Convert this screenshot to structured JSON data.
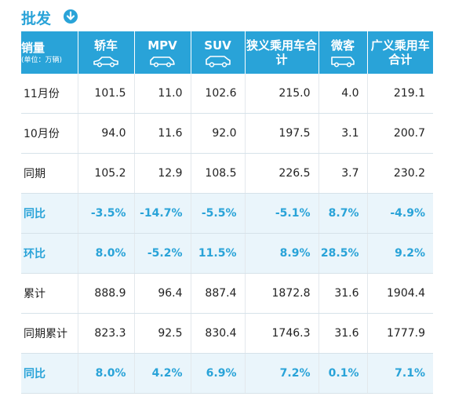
{
  "title": "批发",
  "icons": {
    "title": "download-circle-icon",
    "column": "car-icon"
  },
  "colors": {
    "accent": "#29a3d8",
    "highlight_row_bg": "#eaf5fb"
  },
  "table": {
    "header_label": "销量",
    "header_unit": "(单位：万辆)",
    "columns": [
      "轿车",
      "MPV",
      "SUV",
      "狭义乘用车合计",
      "微客",
      "广义乘用车合计"
    ],
    "rows": [
      {
        "label": "11月份",
        "values": [
          "101.5",
          "11.0",
          "102.6",
          "215.0",
          "4.0",
          "219.1"
        ]
      },
      {
        "label": "10月份",
        "values": [
          "94.0",
          "11.6",
          "92.0",
          "197.5",
          "3.1",
          "200.7"
        ]
      },
      {
        "label": "同期",
        "values": [
          "105.2",
          "12.9",
          "108.5",
          "226.5",
          "3.7",
          "230.2"
        ]
      },
      {
        "label": "同比",
        "values": [
          "-3.5%",
          "-14.7%",
          "-5.5%",
          "-5.1%",
          "8.7%",
          "-4.9%"
        ]
      },
      {
        "label": "环比",
        "values": [
          "8.0%",
          "-5.2%",
          "11.5%",
          "8.9%",
          "28.5%",
          "9.2%"
        ]
      },
      {
        "label": "累计",
        "values": [
          "888.9",
          "96.4",
          "887.4",
          "1872.8",
          "31.6",
          "1904.4"
        ]
      },
      {
        "label": "同期累计",
        "values": [
          "823.3",
          "92.5",
          "830.4",
          "1746.3",
          "31.6",
          "1777.9"
        ]
      },
      {
        "label": "同比",
        "values": [
          "8.0%",
          "4.2%",
          "6.9%",
          "7.2%",
          "0.1%",
          "7.1%"
        ]
      }
    ]
  }
}
